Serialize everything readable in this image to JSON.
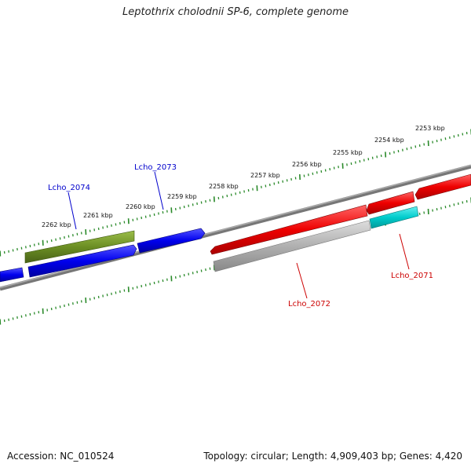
{
  "title": "Leptothrix cholodnii SP-6, complete genome",
  "footer": {
    "accession": "Accession: NC_010524",
    "summary": "Topology: circular; Length: 4,909,403 bp; Genes: 4,420"
  },
  "colors": {
    "backbone": "#808080",
    "tick": "#2a8a2a",
    "forward_gene": "#0000ee",
    "reverse_gene": "#ee0000",
    "olive_gene": "#6b8e23",
    "grey_gene": "#b0b0b0",
    "cyan_gene": "#00cccc",
    "label_blue": "#0000cc",
    "label_red": "#cc0000"
  },
  "kbp_labels": [
    "2253 kbp",
    "2254 kbp",
    "2255 kbp",
    "2256 kbp",
    "2257 kbp",
    "2258 kbp",
    "2259 kbp",
    "2260 kbp",
    "2261 kbp",
    "2262 kbp"
  ],
  "gene_labels": {
    "lcho_2074": "Lcho_2074",
    "lcho_2073": "Lcho_2073",
    "lcho_2072": "Lcho_2072",
    "lcho_2071": "Lcho_2071"
  }
}
